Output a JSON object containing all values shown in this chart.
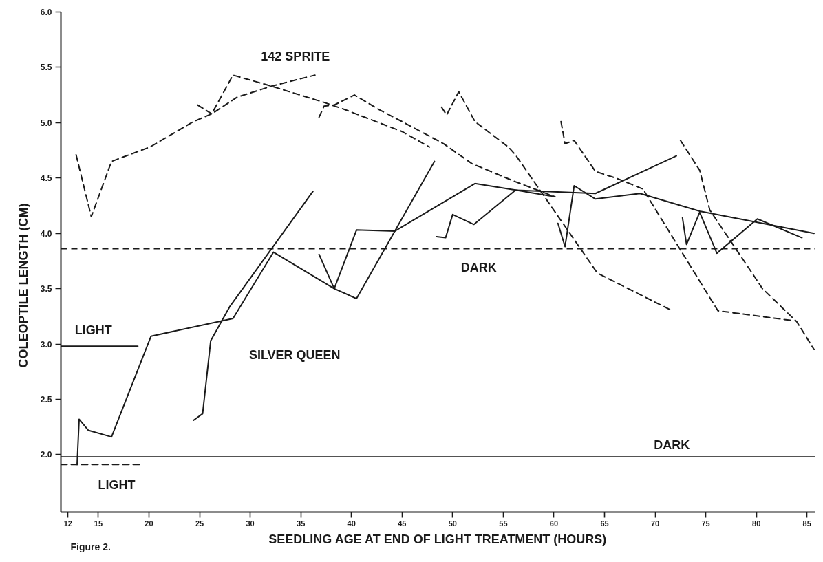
{
  "chart_data": {
    "type": "line",
    "xlabel": "SEEDLING AGE AT END OF LIGHT TREATMENT (HOURS)",
    "ylabel": "COLEOPTILE LENGTH (CM)",
    "xlim": [
      11.3,
      85.8
    ],
    "ylim": [
      1.48,
      6.0
    ],
    "xticks": [
      12,
      15,
      20,
      25,
      30,
      35,
      40,
      45,
      50,
      55,
      60,
      65,
      70,
      75,
      80,
      85
    ],
    "yticks": [
      {
        "value": 2,
        "label": "2.0"
      },
      2.5,
      {
        "value": 3,
        "label": "3.0"
      },
      3.5,
      {
        "value": 4,
        "label": "4.0"
      },
      4.5,
      {
        "value": 5,
        "label": "5.0"
      },
      5.5,
      {
        "value": 6,
        "label": "6.0"
      }
    ],
    "series": [
      {
        "color": "#1a1a1a",
        "line_style": "dashed",
        "x": [
          12.8,
          14.3,
          16.3,
          20.1,
          24.4,
          26.2,
          28.7,
          32.1,
          36.4
        ],
        "values": [
          4.71,
          4.15,
          4.65,
          4.78,
          5.01,
          5.08,
          5.23,
          5.33,
          5.43
        ]
      },
      {
        "color": "#1a1a1a",
        "line_style": "dashed",
        "x": [
          24.8,
          26.2,
          28.3,
          32.1,
          37.4,
          39.3,
          45.0,
          47.7
        ],
        "values": [
          5.16,
          5.08,
          5.43,
          5.33,
          5.18,
          5.12,
          4.92,
          4.78
        ]
      },
      {
        "color": "#1a1a1a",
        "line_style": "dashed",
        "x": [
          36.8,
          37.3,
          38.3,
          40.3,
          42.7,
          45.0,
          49.1,
          51.9,
          56.1,
          60.1
        ],
        "values": [
          5.05,
          5.15,
          5.16,
          5.25,
          5.12,
          5.01,
          4.81,
          4.63,
          4.47,
          4.33
        ]
      },
      {
        "color": "#1a1a1a",
        "line_style": "dashed",
        "x": [
          48.9,
          49.4,
          50.6,
          52.2,
          55.5,
          56.2,
          64.3,
          71.7
        ],
        "values": [
          5.14,
          5.07,
          5.28,
          5.01,
          4.78,
          4.71,
          3.64,
          3.3
        ]
      },
      {
        "color": "#1a1a1a",
        "line_style": "dashed",
        "x": [
          60.7,
          61.1,
          62.0,
          64.1,
          66.4,
          68.8,
          76.2,
          83.7
        ],
        "values": [
          5.01,
          4.81,
          4.84,
          4.56,
          4.49,
          4.4,
          3.3,
          3.21
        ]
      },
      {
        "color": "#1a1a1a",
        "line_style": "dashed",
        "x": [
          72.5,
          74.4,
          75.4,
          80.1,
          80.6,
          84.0,
          85.7
        ],
        "values": [
          4.84,
          4.57,
          4.21,
          3.57,
          3.5,
          3.2,
          2.95
        ]
      },
      {
        "color": "#1a1a1a",
        "line_style": "solid",
        "x": [
          12.9,
          13.1,
          14.0,
          16.3,
          20.2,
          28.3,
          32.3,
          38.3,
          40.5,
          48.2
        ],
        "values": [
          1.91,
          2.32,
          2.22,
          2.16,
          3.07,
          3.23,
          3.83,
          3.5,
          3.41,
          4.65
        ]
      },
      {
        "color": "#1a1a1a",
        "line_style": "solid",
        "x": [
          24.4,
          25.3,
          26.1,
          28.0,
          36.2
        ],
        "values": [
          2.31,
          2.37,
          3.03,
          3.34,
          4.38
        ]
      },
      {
        "color": "#1a1a1a",
        "line_style": "solid",
        "x": [
          36.8,
          38.3,
          40.5,
          44.3,
          52.2,
          56.3,
          60.1
        ],
        "values": [
          3.81,
          3.5,
          4.03,
          4.02,
          4.45,
          4.39,
          4.33
        ]
      },
      {
        "color": "#1a1a1a",
        "line_style": "solid",
        "x": [
          48.4,
          49.3,
          50.0,
          52.1,
          56.2,
          64.1,
          72.1
        ],
        "values": [
          3.97,
          3.96,
          4.17,
          4.08,
          4.39,
          4.36,
          4.7
        ]
      },
      {
        "color": "#1a1a1a",
        "line_style": "solid",
        "x": [
          60.4,
          61.1,
          62.0,
          64.1,
          68.5,
          74.4,
          85.7
        ],
        "values": [
          4.09,
          3.88,
          4.43,
          4.31,
          4.36,
          4.2,
          4.0
        ]
      },
      {
        "color": "#1a1a1a",
        "line_style": "solid",
        "x": [
          72.7,
          73.1,
          74.4,
          76.1,
          80.1,
          84.5
        ],
        "values": [
          4.14,
          3.9,
          4.19,
          3.82,
          4.13,
          3.96
        ]
      },
      {
        "name": "LIGHT",
        "color": "#1a1a1a",
        "line_style": "solid",
        "x": [
          11.3,
          18.9
        ],
        "values": [
          2.98,
          2.98
        ]
      },
      {
        "name": "LIGHT",
        "color": "#1a1a1a",
        "line_style": "dashed",
        "x": [
          11.3,
          19.2
        ],
        "values": [
          1.91,
          1.91
        ]
      }
    ],
    "ref_lines": [
      {
        "axis": "y",
        "value": 3.86,
        "label": "DARK",
        "color": "#1a1a1a",
        "line_style": "dashed"
      },
      {
        "axis": "y",
        "value": 1.98,
        "label": "DARK",
        "color": "#1a1a1a",
        "line_style": "solid"
      }
    ],
    "annotations": [
      "142 SPRITE",
      "SILVER QUEEN",
      "Figure 2."
    ]
  }
}
